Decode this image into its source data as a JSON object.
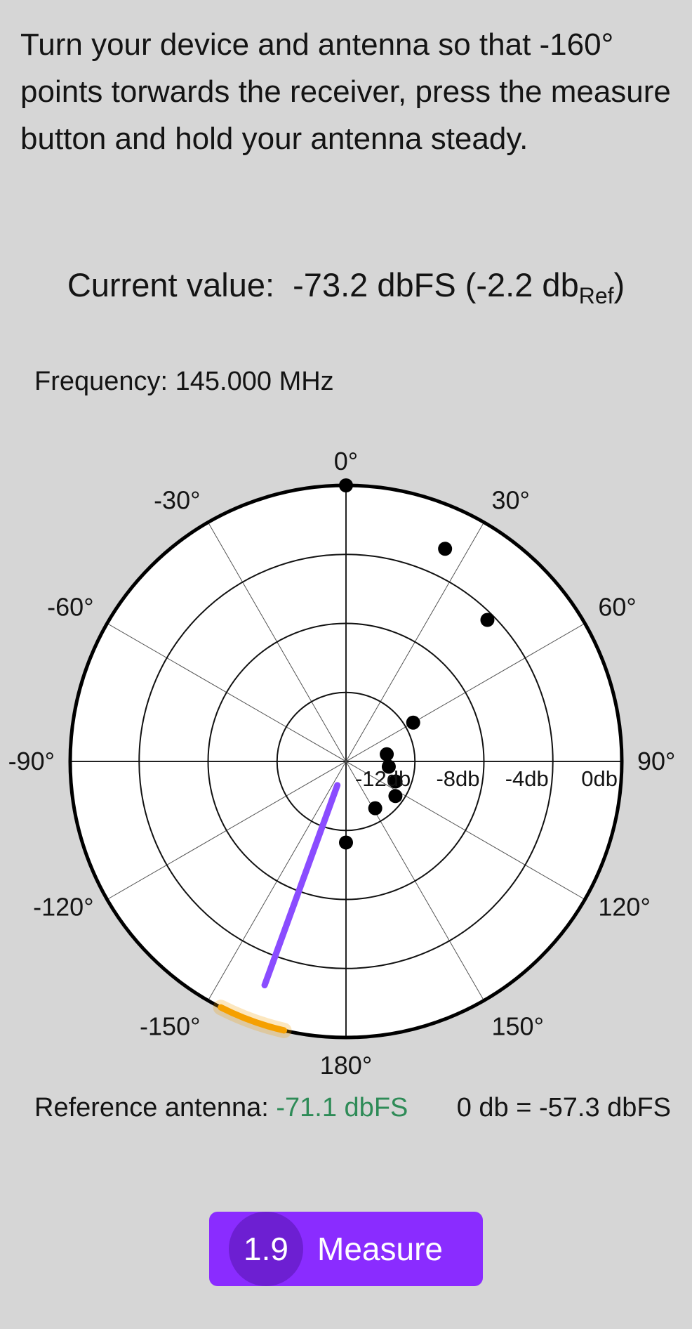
{
  "instructions": "Turn your device and antenna so that -160° points torwards the receiver, press the measure button and hold your antenna steady.",
  "current": {
    "label": "Current value:",
    "value_main": "-73.2 dbFS (-2.2 db",
    "value_sub": "Ref",
    "value_close": ")"
  },
  "frequency": "Frequency: 145.000 MHz",
  "chart_data": {
    "type": "scatter",
    "polar": true,
    "angle_labels": [
      "0°",
      "30°",
      "60°",
      "90°",
      "120°",
      "150°",
      "180°",
      "-150°",
      "-120°",
      "-90°",
      "-60°",
      "-30°"
    ],
    "radial_labels": [
      "-12db",
      "-8db",
      "-4db",
      "0db"
    ],
    "r_range_db": [
      -16,
      0
    ],
    "points": [
      {
        "angle_deg": 0,
        "db": 0
      },
      {
        "angle_deg": 25,
        "db": -2.4
      },
      {
        "angle_deg": 45,
        "db": -4.4
      },
      {
        "angle_deg": 60,
        "db": -11.5
      },
      {
        "angle_deg": 80,
        "db": -13.6
      },
      {
        "angle_deg": 97,
        "db": -13.5
      },
      {
        "angle_deg": 112,
        "db": -12.9
      },
      {
        "angle_deg": 125,
        "db": -12.5
      },
      {
        "angle_deg": 148,
        "db": -12.8
      },
      {
        "angle_deg": 180,
        "db": -11.3
      }
    ],
    "needle": {
      "angle_deg": -160,
      "db": -2.2
    },
    "target_arc_deg": [
      -167,
      -153
    ],
    "needle_color": "#8a4cff",
    "target_color": "#f5a000"
  },
  "reference": {
    "label": "Reference antenna:",
    "value": "-71.1 dbFS"
  },
  "zero_db": "0 db = -57.3 dbFS",
  "measure_button": {
    "countdown": "1.9",
    "label": "Measure",
    "color": "#8a2cff"
  }
}
